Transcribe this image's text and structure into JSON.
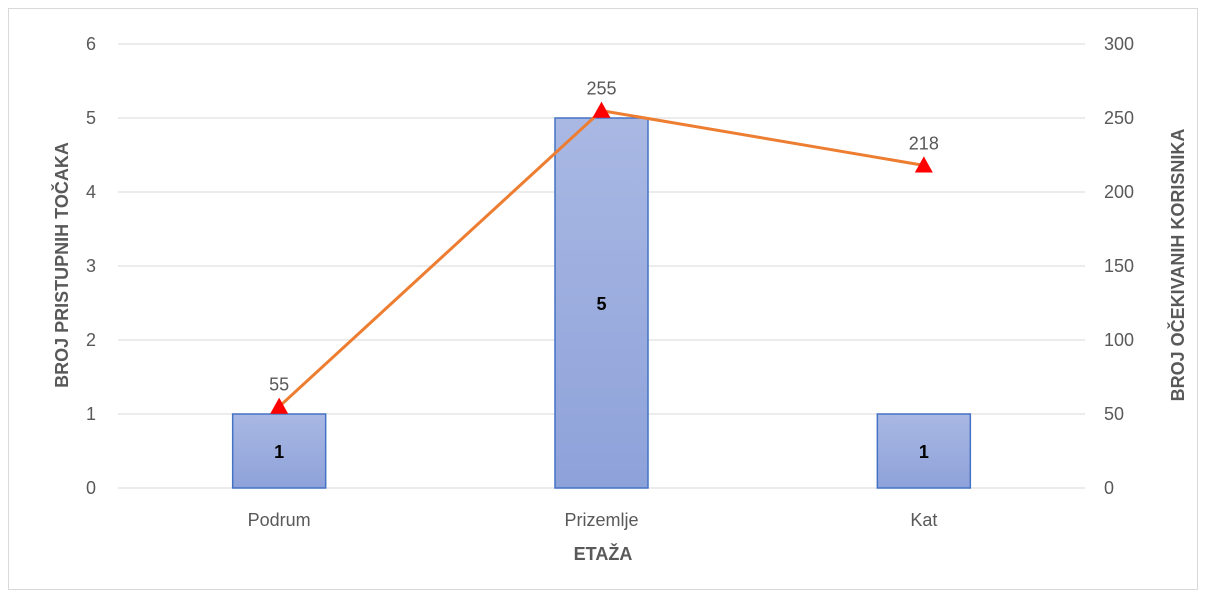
{
  "chart_data": {
    "type": "bar",
    "title": "",
    "categories": [
      "Podrum",
      "Prizemlje",
      "Kat"
    ],
    "xlabel": "ETAŽA",
    "ylabel": "BROJ PRISTUPNIH TOČAKA",
    "y2label": "BROJ OČEKIVANIH KORISNIKA",
    "ylim": [
      0,
      6
    ],
    "y2lim": [
      0,
      300
    ],
    "yticks": [
      "0",
      "1",
      "2",
      "3",
      "4",
      "5",
      "6"
    ],
    "y2ticks": [
      "0",
      "50",
      "100",
      "150",
      "200",
      "250",
      "300"
    ],
    "grid": true,
    "series": [
      {
        "type": "bar",
        "axis": "left",
        "values": [
          1,
          5,
          1
        ],
        "labels": [
          "1",
          "5",
          "1"
        ],
        "color": "#8FA3DB",
        "border_color": "#4472C4"
      },
      {
        "type": "line",
        "axis": "right",
        "values": [
          55,
          255,
          218
        ],
        "labels": [
          "55",
          "255",
          "218"
        ],
        "color": "#ED7D31",
        "marker": "triangle",
        "marker_color": "#FF0000"
      }
    ]
  }
}
